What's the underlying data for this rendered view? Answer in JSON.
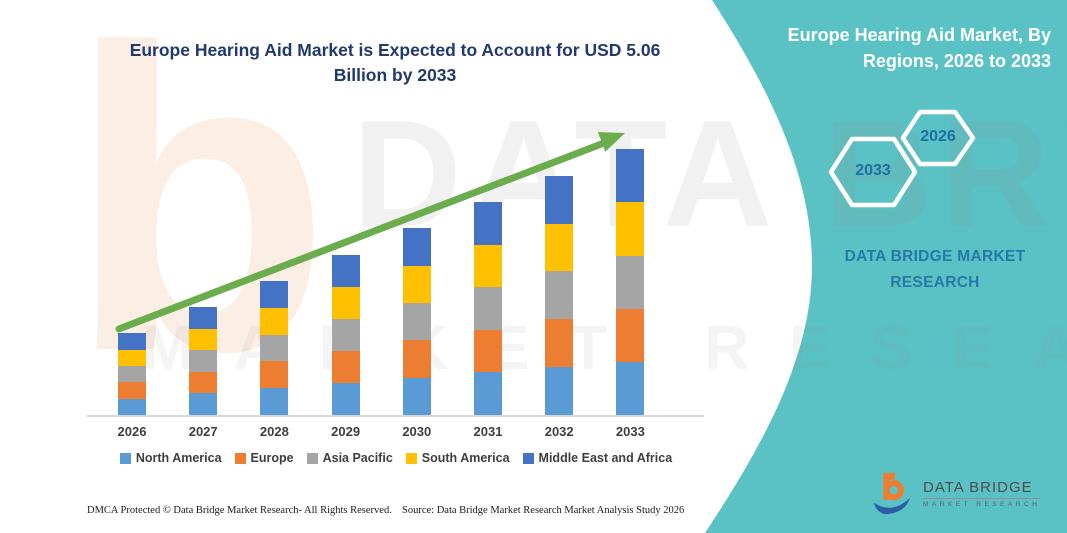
{
  "header": {
    "title_lines": [
      "Europe Hearing Aid Market is Expected to Account for USD 5.06",
      "Billion by 2033"
    ]
  },
  "side_panel": {
    "title_lines": [
      "Europe Hearing Aid Market, By",
      "Regions, 2026 to 2033"
    ],
    "hexagons": [
      {
        "label": "2033"
      },
      {
        "label": "2026"
      }
    ],
    "brand_lines": [
      "DATA BRIDGE MARKET",
      "RESEARCH"
    ]
  },
  "chart_data": {
    "type": "bar",
    "stacked": true,
    "title": "Europe Hearing Aid Market is Expected to Account for USD 5.06 Billion by 2033",
    "unit": "USD Billion",
    "categories": [
      "2026",
      "2027",
      "2028",
      "2029",
      "2030",
      "2031",
      "2032",
      "2033"
    ],
    "series": [
      {
        "name": "North America",
        "color": "#5B9BD5",
        "values": [
          0.31,
          0.41,
          0.51,
          0.61,
          0.71,
          0.81,
          0.91,
          1.01
        ]
      },
      {
        "name": "Europe",
        "color": "#ED7D31",
        "values": [
          0.31,
          0.41,
          0.51,
          0.61,
          0.71,
          0.81,
          0.91,
          1.01
        ]
      },
      {
        "name": "Asia Pacific",
        "color": "#A5A5A5",
        "values": [
          0.31,
          0.41,
          0.51,
          0.61,
          0.71,
          0.81,
          0.91,
          1.01
        ]
      },
      {
        "name": "South America",
        "color": "#FFC000",
        "values": [
          0.31,
          0.41,
          0.51,
          0.61,
          0.71,
          0.81,
          0.91,
          1.01
        ]
      },
      {
        "name": "Middle East and Africa",
        "color": "#4472C4",
        "values": [
          0.31,
          0.41,
          0.51,
          0.61,
          0.71,
          0.81,
          0.91,
          1.02
        ]
      }
    ],
    "totals": [
      1.55,
      2.05,
      2.55,
      3.05,
      3.55,
      4.05,
      4.55,
      5.06
    ],
    "ylim": [
      0,
      5.5
    ],
    "y_axis_visible": false,
    "gridlines": false,
    "legend_position": "bottom",
    "trend_arrow": true,
    "trend_color": "#6BAC4C"
  },
  "footer": {
    "dmca": "DMCA Protected © Data Bridge Market Research-  All Rights Reserved.",
    "source": "Source: Data Bridge Market Research  Market Analysis Study 2026"
  },
  "logo": {
    "title": "DATA BRIDGE",
    "subtitle": "MARKET RESEARCH"
  },
  "watermark": {
    "glyph": "b",
    "line1": "DATA BRIDGE",
    "line2": "MARKET RESEARCH"
  },
  "colors": {
    "panel_teal": "#5AC2C4",
    "title_navy": "#203A6E",
    "panel_text_blue": "#2878A8",
    "hex_border_white": "#FFFFFF",
    "axis_line": "#D8D8D8",
    "label_gray": "#3F3F3F",
    "logo_orange": "#ED7D31",
    "logo_blue": "#2B5EA7"
  }
}
